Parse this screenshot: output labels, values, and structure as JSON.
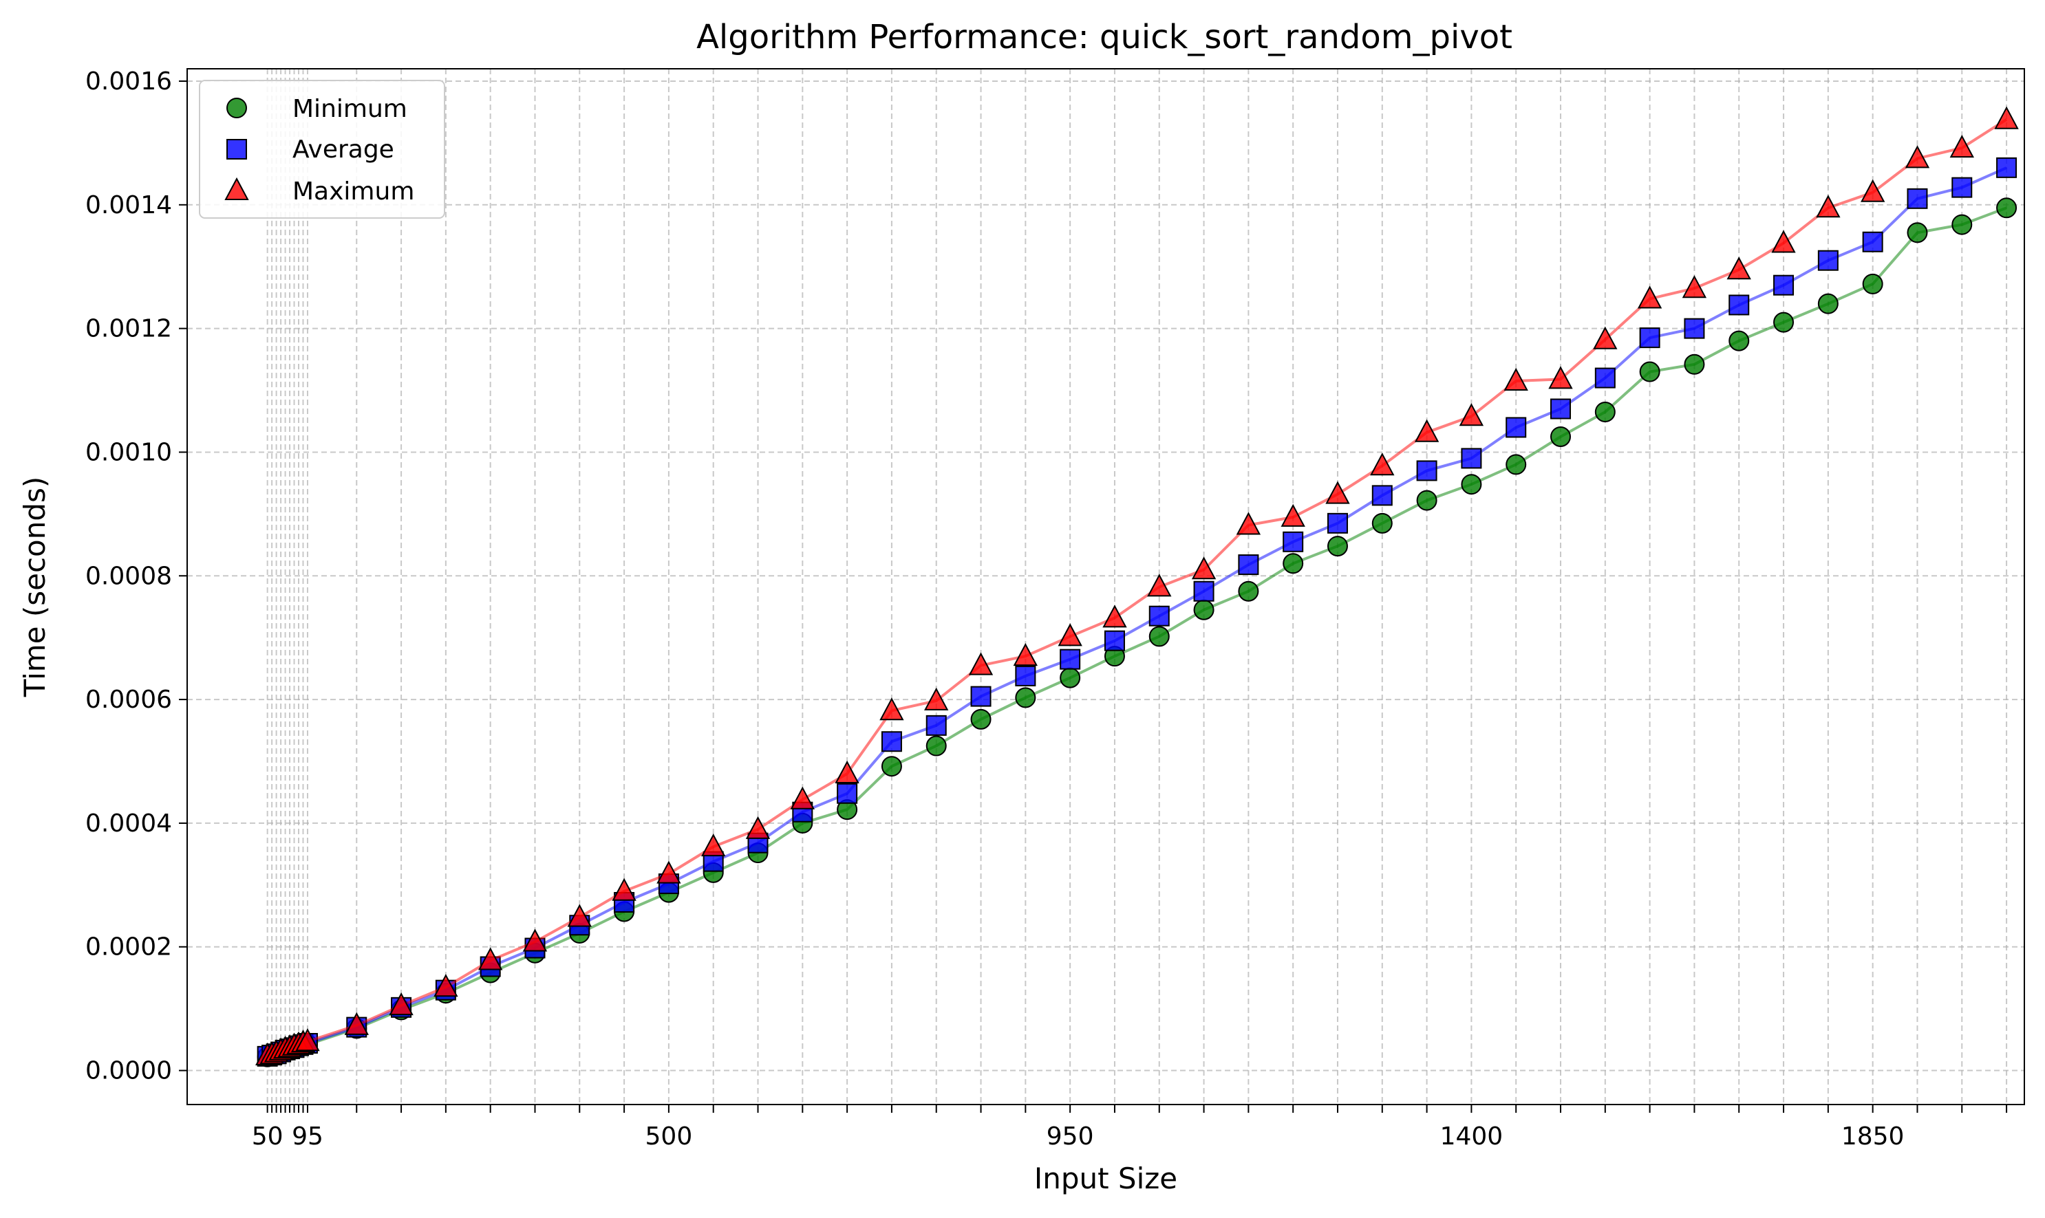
{
  "chart_data": {
    "type": "line",
    "title": "Algorithm Performance: quick_sort_random_pivot",
    "xlabel": "Input Size",
    "ylabel": "Time (seconds)",
    "xlim": [
      -40,
      2020
    ],
    "ylim": [
      -5.5e-05,
      0.00162
    ],
    "grid": true,
    "legend_position": "top-left",
    "x_ticks": [
      50,
      95,
      500,
      950,
      1400,
      1850
    ],
    "y_ticks": [
      "0.0000",
      "0.0002",
      "0.0004",
      "0.0006",
      "0.0008",
      "0.0010",
      "0.0012",
      "0.0014",
      "0.0016"
    ],
    "x": [
      50,
      55,
      60,
      65,
      70,
      75,
      80,
      85,
      90,
      95,
      150,
      200,
      250,
      300,
      350,
      400,
      450,
      500,
      550,
      600,
      650,
      700,
      750,
      800,
      850,
      900,
      950,
      1000,
      1050,
      1100,
      1150,
      1200,
      1250,
      1300,
      1350,
      1400,
      1450,
      1500,
      1550,
      1600,
      1650,
      1700,
      1750,
      1800,
      1850,
      1900,
      1950,
      2000
    ],
    "series": [
      {
        "name": "Minimum",
        "color": "#008000",
        "marker": "circle",
        "values": [
          2.2e-05,
          2.4e-05,
          2.6e-05,
          2.9e-05,
          3.1e-05,
          3.3e-05,
          3.5e-05,
          3.8e-05,
          4e-05,
          4.2e-05,
          6.8e-05,
          9.8e-05,
          0.000125,
          0.000158,
          0.00019,
          0.000222,
          0.000257,
          0.000288,
          0.00032,
          0.000352,
          0.0004,
          0.000422,
          0.000492,
          0.000525,
          0.000568,
          0.000603,
          0.000635,
          0.00067,
          0.000702,
          0.000745,
          0.000775,
          0.00082,
          0.000848,
          0.000885,
          0.000922,
          0.000948,
          0.00098,
          0.001025,
          0.001065,
          0.00113,
          0.001142,
          0.00118,
          0.00121,
          0.00124,
          0.001272,
          0.001355,
          0.001368,
          0.001395
        ]
      },
      {
        "name": "Average",
        "color": "#0000ff",
        "marker": "square",
        "values": [
          2.3e-05,
          2.5e-05,
          2.7e-05,
          3e-05,
          3.3e-05,
          3.5e-05,
          3.7e-05,
          4e-05,
          4.2e-05,
          4.4e-05,
          7e-05,
          0.000102,
          0.00013,
          0.000168,
          0.000198,
          0.000235,
          0.000272,
          0.000302,
          0.000338,
          0.000368,
          0.000418,
          0.000448,
          0.000532,
          0.000558,
          0.000605,
          0.000638,
          0.000665,
          0.000695,
          0.000735,
          0.000775,
          0.000818,
          0.000855,
          0.000885,
          0.00093,
          0.00097,
          0.00099,
          0.00104,
          0.00107,
          0.00112,
          0.001185,
          0.0012,
          0.001238,
          0.00127,
          0.00131,
          0.00134,
          0.00141,
          0.001428,
          0.00146
        ]
      },
      {
        "name": "Maximum",
        "color": "#ff0000",
        "marker": "triangle",
        "values": [
          2.4e-05,
          2.6e-05,
          2.9e-05,
          3.2e-05,
          3.5e-05,
          3.7e-05,
          4e-05,
          4.2e-05,
          4.5e-05,
          4.7e-05,
          7.3e-05,
          0.000105,
          0.000135,
          0.000178,
          0.000208,
          0.000248,
          0.00029,
          0.000318,
          0.000362,
          0.00039,
          0.000438,
          0.00048,
          0.000582,
          0.000598,
          0.000655,
          0.00067,
          0.000702,
          0.000732,
          0.000782,
          0.00081,
          0.000882,
          0.000895,
          0.000932,
          0.000978,
          0.001032,
          0.001058,
          0.001115,
          0.001118,
          0.001182,
          0.001248,
          0.001265,
          0.001295,
          0.001338,
          0.001395,
          0.00142,
          0.001475,
          0.001492,
          0.001538
        ]
      }
    ]
  }
}
